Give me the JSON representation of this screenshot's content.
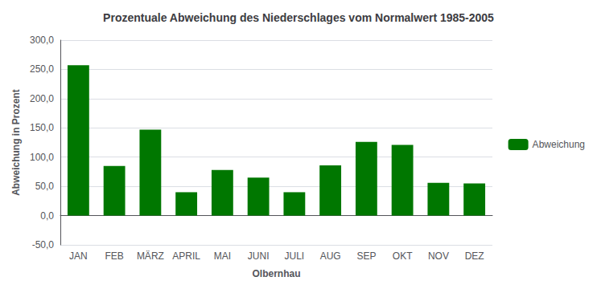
{
  "chart_data": {
    "type": "bar",
    "title": "Prozentuale Abweichung des Niederschlages vom Normalwert 1985-2005",
    "xlabel": "Olbernhau",
    "ylabel": "Abweichung in Prozent",
    "categories": [
      "JAN",
      "FEB",
      "MÄRZ",
      "APRIL",
      "MAI",
      "JUNI",
      "JULI",
      "AUG",
      "SEP",
      "OKT",
      "NOV",
      "DEZ"
    ],
    "series": [
      {
        "name": "Abweichung",
        "color": "#007700",
        "values": [
          257.0,
          85.0,
          147.0,
          40.0,
          78.0,
          65.0,
          40.0,
          86.0,
          126.0,
          121.0,
          56.0,
          55.0
        ]
      }
    ],
    "ylim": [
      -50,
      300
    ],
    "yticks": [
      {
        "value": -50.0,
        "label": "-50,0"
      },
      {
        "value": 0.0,
        "label": "0,0"
      },
      {
        "value": 50.0,
        "label": "50,0"
      },
      {
        "value": 100.0,
        "label": "100,0"
      },
      {
        "value": 150.0,
        "label": "150,0"
      },
      {
        "value": 200.0,
        "label": "200,0"
      },
      {
        "value": 250.0,
        "label": "250,0"
      },
      {
        "value": 300.0,
        "label": "300,0"
      }
    ],
    "grid": true,
    "legend": "right"
  }
}
